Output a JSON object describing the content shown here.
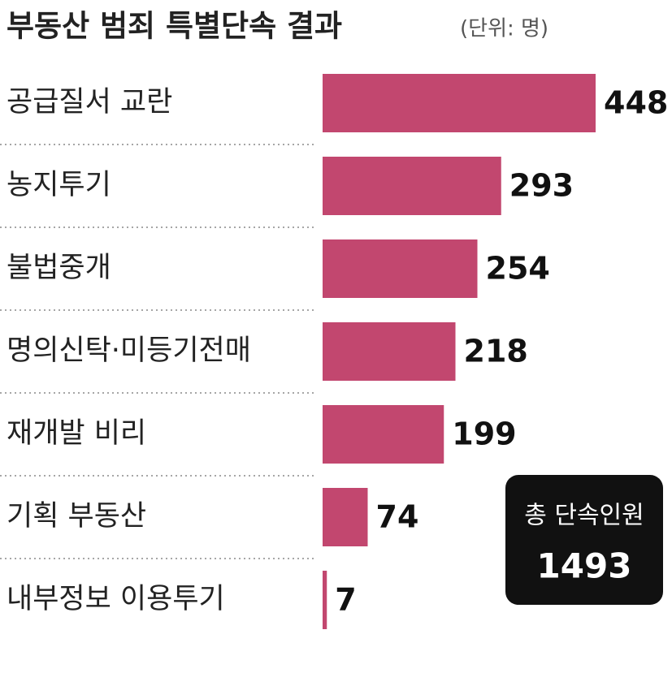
{
  "chart_data": {
    "type": "bar",
    "orientation": "horizontal",
    "title": "부동산 범죄 특별단속 결과",
    "subtitle": "(단위: 명)",
    "categories": [
      "공급질서 교란",
      "농지투기",
      "불법중개",
      "명의신탁·미등기전매",
      "재개발 비리",
      "기획 부동산",
      "내부정보 이용투기"
    ],
    "values": [
      448,
      293,
      254,
      218,
      199,
      74,
      7
    ],
    "color": "#c2476f",
    "annotation": {
      "label": "총 단속인원",
      "value": 1493
    }
  }
}
